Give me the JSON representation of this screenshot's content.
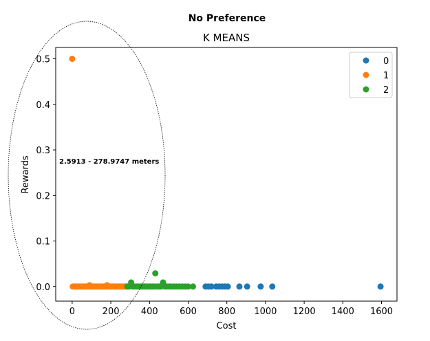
{
  "chart_data": {
    "type": "scatter",
    "suptitle": "No Preference",
    "title": "K MEANS",
    "xlabel": "Cost",
    "ylabel": "Rewards",
    "xlim": [
      -85,
      1680
    ],
    "ylim": [
      -0.032,
      0.525
    ],
    "xticks": [
      0,
      200,
      400,
      600,
      800,
      1000,
      1200,
      1400,
      1600
    ],
    "xtick_labels": [
      "0",
      "200",
      "400",
      "600",
      "800",
      "1000",
      "1200",
      "1400",
      "1600"
    ],
    "yticks": [
      0.0,
      0.1,
      0.2,
      0.3,
      0.4,
      0.5
    ],
    "ytick_labels": [
      "0.0",
      "0.1",
      "0.2",
      "0.3",
      "0.4",
      "0.5"
    ],
    "legend_position": "top-right",
    "annotation": "2.5913 - 278.9747 meters",
    "grid": false,
    "series": [
      {
        "name": "0",
        "color": "#1f77b4",
        "points": [
          [
            690,
            0
          ],
          [
            705,
            0
          ],
          [
            720,
            0
          ],
          [
            745,
            0
          ],
          [
            760,
            0
          ],
          [
            775,
            0
          ],
          [
            790,
            0
          ],
          [
            805,
            0
          ],
          [
            865,
            0
          ],
          [
            905,
            0
          ],
          [
            975,
            0
          ],
          [
            1035,
            0
          ],
          [
            1595,
            0
          ]
        ]
      },
      {
        "name": "1",
        "color": "#ff7f0e",
        "points": [
          [
            0,
            0.5
          ],
          [
            3,
            0
          ],
          [
            10,
            0
          ],
          [
            18,
            0
          ],
          [
            26,
            0
          ],
          [
            34,
            0
          ],
          [
            42,
            0
          ],
          [
            50,
            0
          ],
          [
            58,
            0
          ],
          [
            66,
            0
          ],
          [
            74,
            0
          ],
          [
            82,
            0
          ],
          [
            90,
            0
          ],
          [
            98,
            0
          ],
          [
            106,
            0
          ],
          [
            114,
            0
          ],
          [
            122,
            0
          ],
          [
            130,
            0
          ],
          [
            138,
            0
          ],
          [
            146,
            0
          ],
          [
            154,
            0
          ],
          [
            162,
            0
          ],
          [
            170,
            0
          ],
          [
            178,
            0
          ],
          [
            186,
            0
          ],
          [
            194,
            0
          ],
          [
            202,
            0
          ],
          [
            210,
            0
          ],
          [
            218,
            0
          ],
          [
            226,
            0
          ],
          [
            234,
            0
          ],
          [
            242,
            0
          ],
          [
            250,
            0
          ],
          [
            258,
            0
          ],
          [
            266,
            0
          ],
          [
            274,
            0
          ],
          [
            279,
            0
          ],
          [
            90,
            0.003
          ],
          [
            180,
            0.003
          ]
        ]
      },
      {
        "name": "2",
        "color": "#2ca02c",
        "points": [
          [
            285,
            0
          ],
          [
            295,
            0
          ],
          [
            305,
            0.009
          ],
          [
            315,
            0
          ],
          [
            325,
            0
          ],
          [
            335,
            0
          ],
          [
            345,
            0
          ],
          [
            355,
            0
          ],
          [
            365,
            0
          ],
          [
            375,
            0
          ],
          [
            385,
            0
          ],
          [
            395,
            0
          ],
          [
            405,
            0
          ],
          [
            415,
            0
          ],
          [
            425,
            0
          ],
          [
            430,
            0.029
          ],
          [
            440,
            0
          ],
          [
            450,
            0
          ],
          [
            460,
            0
          ],
          [
            470,
            0.009
          ],
          [
            480,
            0
          ],
          [
            490,
            0
          ],
          [
            500,
            0
          ],
          [
            510,
            0
          ],
          [
            525,
            0
          ],
          [
            540,
            0
          ],
          [
            555,
            0
          ],
          [
            570,
            0
          ],
          [
            585,
            0
          ],
          [
            600,
            0
          ],
          [
            625,
            0
          ]
        ]
      }
    ]
  }
}
